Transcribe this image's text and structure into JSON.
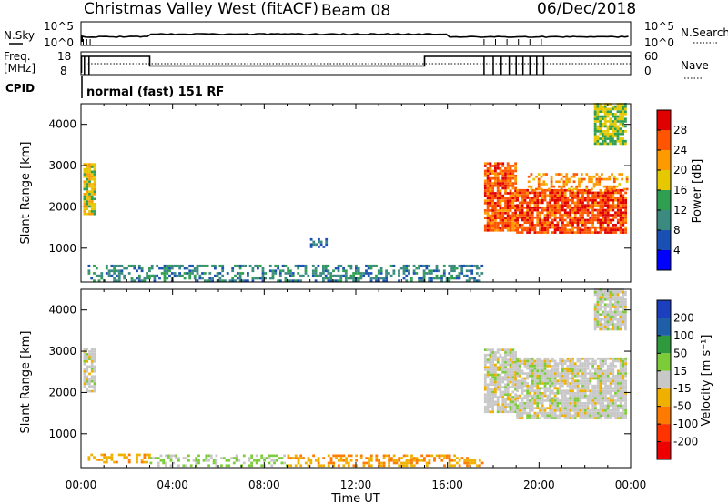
{
  "header": {
    "station": "Christmas Valley West (fitACF)",
    "beam": "Beam 08",
    "date": "06/Dec/2018"
  },
  "status_panels": {
    "nsky_label": "N.Sky",
    "nsearch_label": "N.Search",
    "freq_label_line1": "Freq.",
    "freq_label_line2": "[MHz]",
    "nave_label": "Nave",
    "cpid_label": "CPID",
    "cpid_text": "normal (fast) 151 RF",
    "noise_ticks_left": [
      "10^5",
      "10^0"
    ],
    "noise_ticks_right": [
      "10^5",
      "10^0"
    ],
    "freq_ticks": [
      "18",
      "8"
    ],
    "nave_ticks": [
      "60",
      "0"
    ]
  },
  "colorbars": {
    "power": {
      "title": "Power [dB]",
      "ticks": [
        "28",
        "24",
        "20",
        "16",
        "12",
        "8",
        "4"
      ],
      "colors": [
        "#e00000",
        "#ff5500",
        "#ff9900",
        "#e6c800",
        "#2e9e50",
        "#3a8a80",
        "#1a4fb4",
        "#0000ff"
      ]
    },
    "velocity": {
      "title": "Velocity [m s⁻¹]",
      "ticks": [
        "200",
        "100",
        "50",
        "15",
        "-15",
        "-50",
        "-100",
        "-200"
      ],
      "colors": [
        "#1c3fbd",
        "#1f5fa8",
        "#2f9a3d",
        "#7ccc3a",
        "#c8c8c8",
        "#f0b000",
        "#ff7a00",
        "#ff3300",
        "#ee0000"
      ]
    }
  },
  "axes": {
    "ylabel": "Slant Range [km]",
    "yticks": [
      "4000",
      "3000",
      "2000",
      "1000"
    ],
    "xticks": [
      "00:00",
      "04:00",
      "08:00",
      "12:00",
      "16:00",
      "20:00",
      "00:00"
    ],
    "xlabel": "Time UT"
  },
  "chart_data": [
    {
      "type": "heatmap",
      "name": "power",
      "x_unit": "hours UT",
      "xlim": [
        0,
        24
      ],
      "ylim": [
        180,
        4500
      ],
      "yticks_values": [
        1000,
        2000,
        3000,
        4000
      ],
      "regions": [
        {
          "t0": 0.1,
          "t1": 0.6,
          "r0": 1800,
          "r1": 3050,
          "val": 18
        },
        {
          "t0": 17.6,
          "t1": 19.0,
          "r0": 1400,
          "r1": 3050,
          "val": 26
        },
        {
          "t0": 19.0,
          "t1": 23.8,
          "r0": 1350,
          "r1": 2400,
          "val": 27
        },
        {
          "t0": 19.5,
          "t1": 23.8,
          "r0": 2400,
          "r1": 2800,
          "val": 22
        },
        {
          "t0": 0.3,
          "t1": 17.5,
          "r0": 180,
          "r1": 550,
          "val": 10
        },
        {
          "t0": 10.0,
          "t1": 10.7,
          "r0": 1000,
          "r1": 1200,
          "val": 8
        },
        {
          "t0": 22.4,
          "t1": 23.8,
          "r0": 3500,
          "r1": 4500,
          "val": 16
        }
      ]
    },
    {
      "type": "heatmap",
      "name": "velocity",
      "x_unit": "hours UT",
      "xlim": [
        0,
        24
      ],
      "ylim": [
        180,
        4500
      ],
      "yticks_values": [
        1000,
        2000,
        3000,
        4000
      ],
      "regions": [
        {
          "t0": 0.1,
          "t1": 0.6,
          "r0": 2000,
          "r1": 3050,
          "val": 0
        },
        {
          "t0": 17.6,
          "t1": 19.0,
          "r0": 1500,
          "r1": 3050,
          "val": 0
        },
        {
          "t0": 19.0,
          "t1": 23.8,
          "r0": 1350,
          "r1": 2800,
          "val": 0
        },
        {
          "t0": 0.3,
          "t1": 3.0,
          "r0": 280,
          "r1": 500,
          "val": -40
        },
        {
          "t0": 3.0,
          "t1": 9.0,
          "r0": 200,
          "r1": 500,
          "val": 20
        },
        {
          "t0": 9.0,
          "t1": 17.5,
          "r0": 200,
          "r1": 450,
          "val": -45
        },
        {
          "t0": 22.4,
          "t1": 23.8,
          "r0": 3500,
          "r1": 4500,
          "val": 0
        }
      ]
    }
  ]
}
